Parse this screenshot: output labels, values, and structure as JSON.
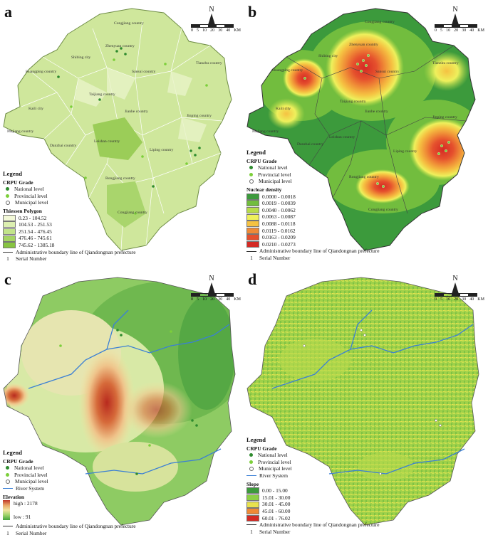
{
  "panels": {
    "a": {
      "label": "a"
    },
    "b": {
      "label": "b"
    },
    "c": {
      "label": "c"
    },
    "d": {
      "label": "d"
    }
  },
  "compass": {
    "letter": "N"
  },
  "scale": {
    "ticks": [
      "0",
      "5",
      "10",
      "20",
      "30",
      "40"
    ],
    "unit": "KM"
  },
  "place_names": {
    "congjiang": "Congjiang country",
    "zhenyuan": "Zhenyuan country",
    "shibing": "Shibing city",
    "huangping": "Huangping country",
    "sansui": "Sansui country",
    "tianzhu": "Tianzhu country",
    "majiang": "Majiang country",
    "kaili": "Kaili city",
    "jinping": "Jinping country",
    "danzhai": "Danzhai country",
    "leishan": "Leishan country",
    "liping": "Liping country",
    "rongjiang": "Rongjiang country",
    "taijiang": "Taijiang country",
    "jianhe": "Jianhe country"
  },
  "legend_common": {
    "title": "Legend",
    "crpu_grade": "CRPU Grade",
    "national": "National level",
    "provincial": "Provincial level",
    "municipal": "Municipal level",
    "river": "River  System",
    "boundary": "Administrative boundary line of Qiandongnan prefecture",
    "serial_symbol": "1",
    "serial": "Serial Number"
  },
  "legend_a": {
    "heading": "Thiessen Polygon",
    "classes": [
      {
        "label": "0.23 - 104.52",
        "color": "#f3f9d8"
      },
      {
        "label": "104.53 - 251.53",
        "color": "#dcefb0"
      },
      {
        "label": "251.54 - 476.45",
        "color": "#c2e48a"
      },
      {
        "label": "476.46 - 745.61",
        "color": "#a6d563"
      },
      {
        "label": "745.62 - 1385.18",
        "color": "#87c441"
      }
    ]
  },
  "legend_b": {
    "heading": "Nuclear density",
    "classes": [
      {
        "label": "0.0000 - 0.0018",
        "color": "#3c9a3c"
      },
      {
        "label": "0.0019 - 0.0039",
        "color": "#72bd3e"
      },
      {
        "label": "0.0040 - 0.0062",
        "color": "#b8dc4a"
      },
      {
        "label": "0.0063 - 0.0087",
        "color": "#eef05c"
      },
      {
        "label": "0.0088 - 0.0118",
        "color": "#f5c242"
      },
      {
        "label": "0.0119 - 0.0162",
        "color": "#ef8a36"
      },
      {
        "label": "0.0163 - 0.0209",
        "color": "#e5502d"
      },
      {
        "label": "0.0210 - 0.0273",
        "color": "#d42a24"
      }
    ]
  },
  "legend_c": {
    "heading": "Elevation",
    "high": "high : 2178",
    "low": "low : 91"
  },
  "legend_d": {
    "heading": "Slope",
    "classes": [
      {
        "label": "0.00 - 15.00",
        "color": "#3c9a3c"
      },
      {
        "label": "15.01 - 30.00",
        "color": "#8ccf45"
      },
      {
        "label": "30.01 - 45.00",
        "color": "#e8e24e"
      },
      {
        "label": "45.01 - 60.00",
        "color": "#ef8a36"
      },
      {
        "label": "60.01 - 76.02",
        "color": "#d42a24"
      }
    ]
  }
}
